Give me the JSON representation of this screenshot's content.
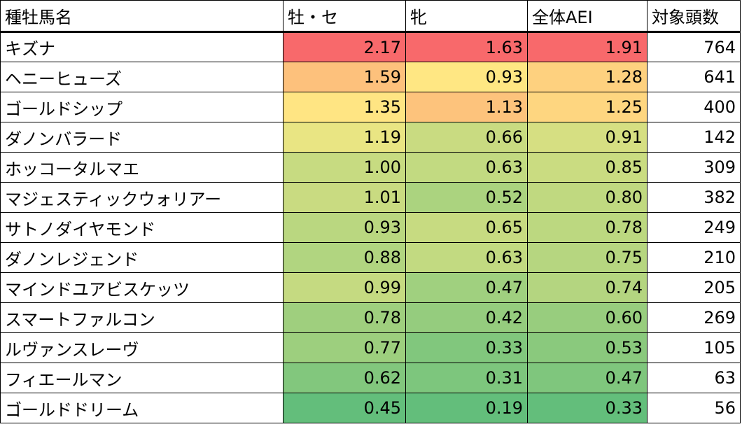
{
  "chart_data": {
    "type": "table",
    "columns": [
      "種牡馬名",
      "牡・セ",
      "牝",
      "全体AEI",
      "対象頭数"
    ],
    "rows": [
      {
        "name": "キズナ",
        "male": "2.17",
        "female": "1.63",
        "overall": "1.91",
        "count": "764"
      },
      {
        "name": "ヘニーヒューズ",
        "male": "1.59",
        "female": "0.93",
        "overall": "1.28",
        "count": "641"
      },
      {
        "name": "ゴールドシップ",
        "male": "1.35",
        "female": "1.13",
        "overall": "1.25",
        "count": "400"
      },
      {
        "name": "ダノンバラード",
        "male": "1.19",
        "female": "0.66",
        "overall": "0.91",
        "count": "142"
      },
      {
        "name": "ホッコータルマエ",
        "male": "1.00",
        "female": "0.63",
        "overall": "0.85",
        "count": "309"
      },
      {
        "name": "マジェスティックウォリアー",
        "male": "1.01",
        "female": "0.52",
        "overall": "0.80",
        "count": "382"
      },
      {
        "name": "サトノダイヤモンド",
        "male": "0.93",
        "female": "0.65",
        "overall": "0.78",
        "count": "249"
      },
      {
        "name": "ダノンレジェンド",
        "male": "0.88",
        "female": "0.63",
        "overall": "0.75",
        "count": "210"
      },
      {
        "name": "マインドユアビスケッツ",
        "male": "0.99",
        "female": "0.47",
        "overall": "0.74",
        "count": "205"
      },
      {
        "name": "スマートファルコン",
        "male": "0.78",
        "female": "0.42",
        "overall": "0.60",
        "count": "269"
      },
      {
        "name": "ルヴァンスレーヴ",
        "male": "0.77",
        "female": "0.33",
        "overall": "0.53",
        "count": "105"
      },
      {
        "name": "フィエールマン",
        "male": "0.62",
        "female": "0.31",
        "overall": "0.47",
        "count": "63"
      },
      {
        "name": "ゴールドドリーム",
        "male": "0.45",
        "female": "0.19",
        "overall": "0.33",
        "count": "56"
      }
    ],
    "color_scale": {
      "low": "#63be7b",
      "mid": "#ffeb84",
      "high": "#f8696b",
      "per_column": true,
      "columns": [
        "male",
        "female",
        "overall"
      ]
    }
  }
}
